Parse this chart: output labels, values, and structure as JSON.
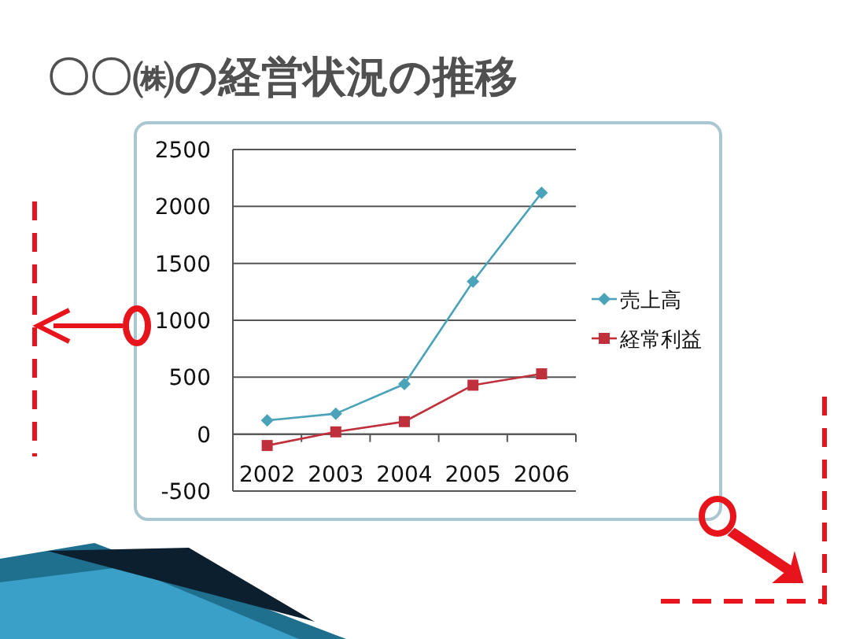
{
  "chart_data": {
    "type": "line",
    "title": "〇〇㈱の経営状況の推移",
    "categories": [
      "2002",
      "2003",
      "2004",
      "2005",
      "2006"
    ],
    "series": [
      {
        "name": "売上高",
        "color": "#4aa3b8",
        "values": [
          120,
          180,
          440,
          1340,
          2120
        ],
        "marker": "diamond"
      },
      {
        "name": "経常利益",
        "color": "#c0303c",
        "values": [
          -100,
          20,
          110,
          430,
          530
        ],
        "marker": "square"
      }
    ],
    "ylim": [
      -500,
      2500
    ],
    "yticks": [
      -500,
      0,
      500,
      1000,
      1500,
      2000,
      2500
    ],
    "grid": "y",
    "legend": "right"
  }
}
